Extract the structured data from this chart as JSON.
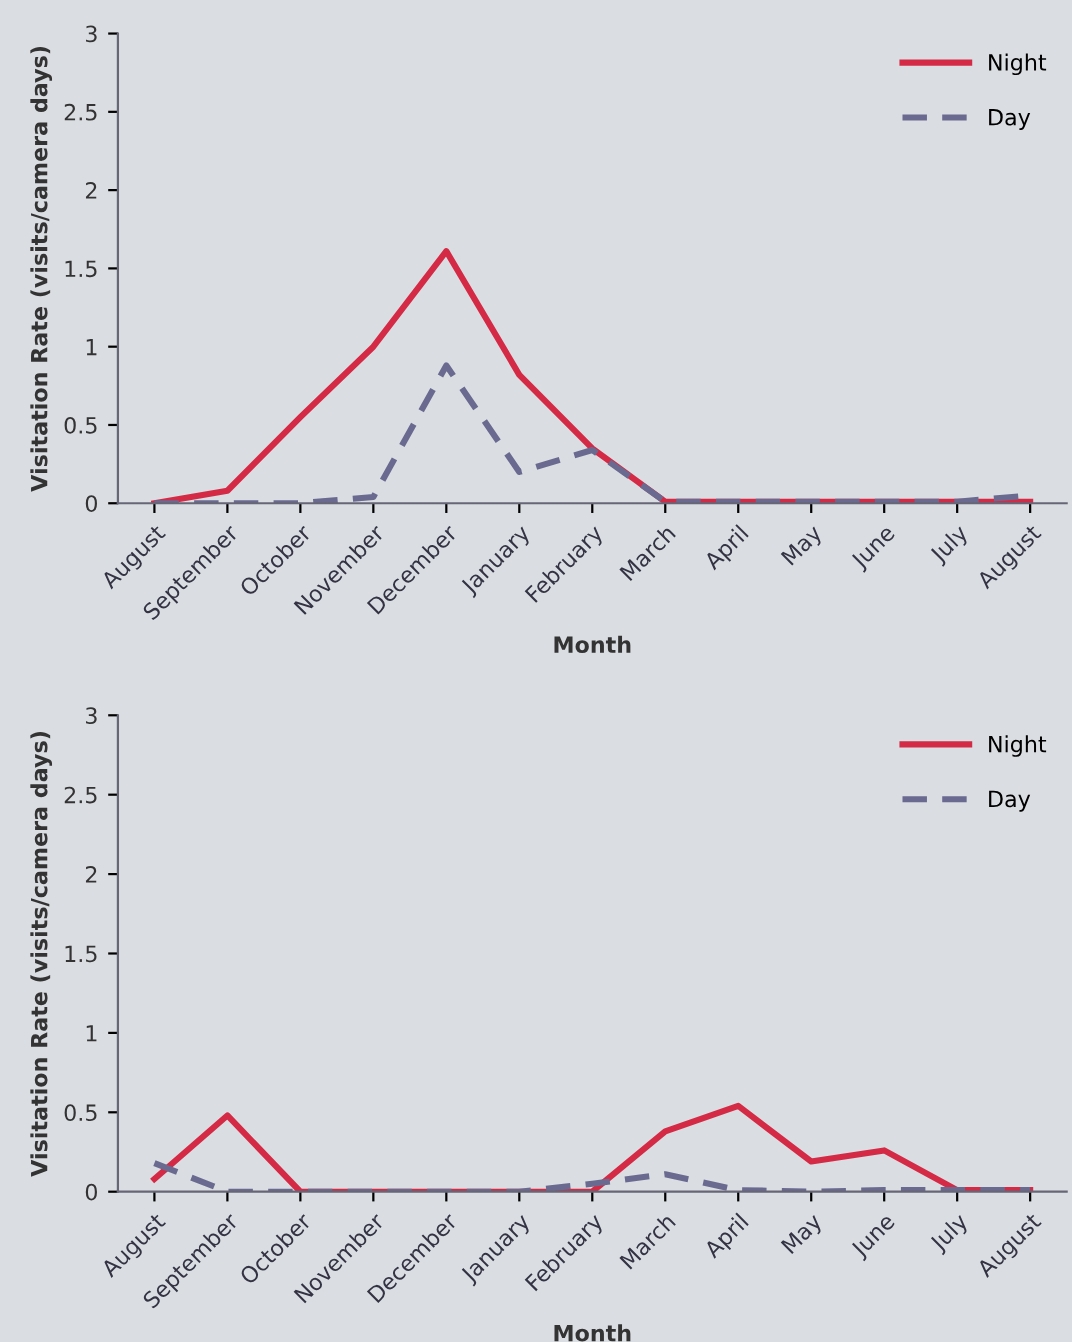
{
  "chart_data": [
    {
      "type": "line",
      "xlabel": "Month",
      "ylabel": "Visitation Rate (visits/camera days)",
      "categories": [
        "August",
        "September",
        "October",
        "November",
        "December",
        "January",
        "February",
        "March",
        "April",
        "May",
        "June",
        "July",
        "August"
      ],
      "ylim": [
        0,
        3
      ],
      "yticks": [
        0,
        0.5,
        1,
        1.5,
        2,
        2.5,
        3
      ],
      "legend": "top right",
      "grid": false,
      "series": [
        {
          "name": "Night",
          "color": "#d42a45",
          "line_style": "solid",
          "values": [
            0,
            0.08,
            0.55,
            1.0,
            1.61,
            0.82,
            0.35,
            0.01,
            0.01,
            0.01,
            0.01,
            0.01,
            0.01
          ]
        },
        {
          "name": "Day",
          "color": "#6a6a90",
          "line_style": "dashed",
          "values": [
            0,
            0,
            0,
            0.04,
            0.88,
            0.2,
            0.34,
            0.01,
            0.01,
            0.01,
            0.01,
            0.01,
            0.05
          ]
        }
      ]
    },
    {
      "type": "line",
      "xlabel": "Month",
      "ylabel": "Visitation Rate (visits/camera days)",
      "categories": [
        "August",
        "September",
        "October",
        "November",
        "December",
        "January",
        "February",
        "March",
        "April",
        "May",
        "June",
        "July",
        "August"
      ],
      "ylim": [
        0,
        3
      ],
      "yticks": [
        0,
        0.5,
        1,
        1.5,
        2,
        2.5,
        3
      ],
      "legend": "top right",
      "grid": false,
      "series": [
        {
          "name": "Night",
          "color": "#d42a45",
          "line_style": "solid",
          "values": [
            0.08,
            0.48,
            0,
            0,
            0,
            0,
            0,
            0.38,
            0.54,
            0.19,
            0.26,
            0.01,
            0.01
          ]
        },
        {
          "name": "Day",
          "color": "#6a6a90",
          "line_style": "dashed",
          "values": [
            0.18,
            0,
            0,
            0,
            0,
            0,
            0.05,
            0.11,
            0.01,
            0,
            0.01,
            0.01,
            0.01
          ]
        }
      ]
    }
  ]
}
